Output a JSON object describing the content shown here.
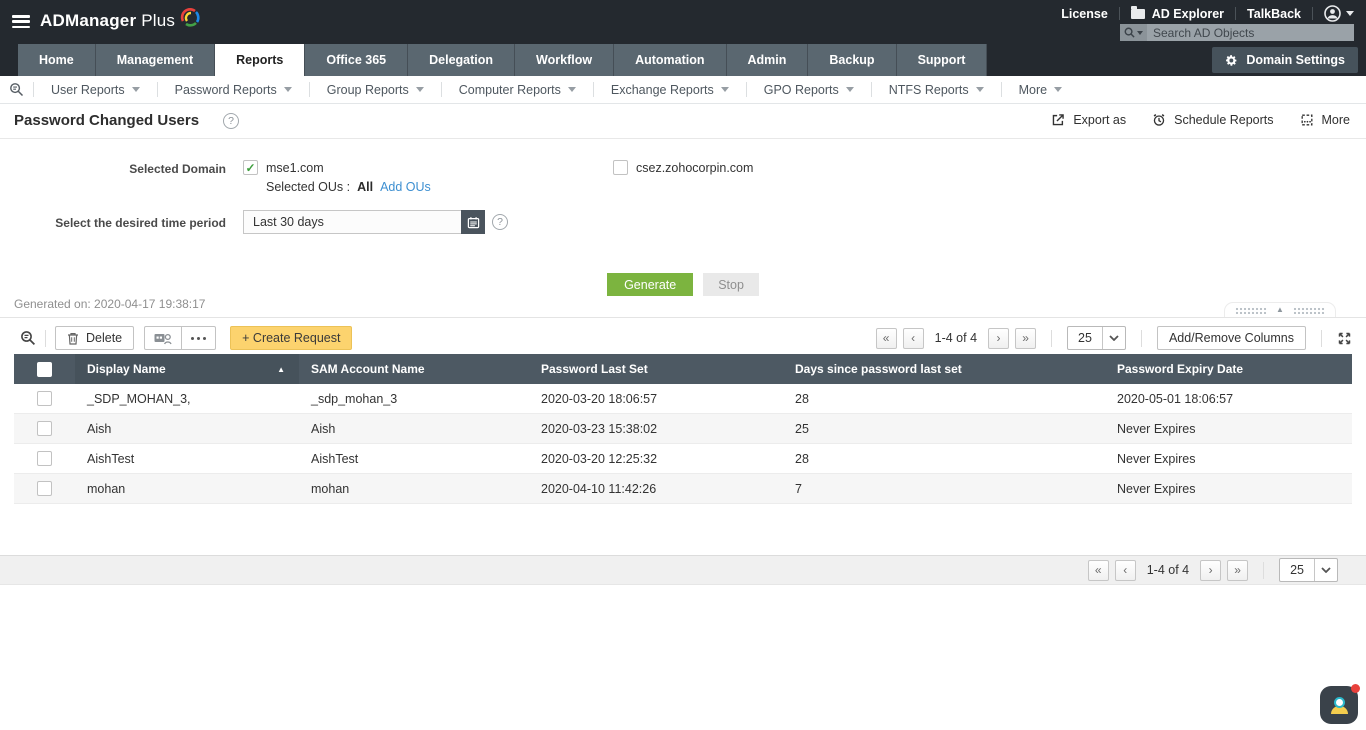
{
  "topbar": {
    "brand_bold": "ADManager",
    "brand_light": "Plus",
    "links": {
      "license": "License",
      "ad_explorer": "AD Explorer",
      "talkback": "TalkBack"
    },
    "search_placeholder": "Search AD Objects"
  },
  "tabs": {
    "items": [
      "Home",
      "Management",
      "Reports",
      "Office 365",
      "Delegation",
      "Workflow",
      "Automation",
      "Admin",
      "Backup",
      "Support"
    ],
    "active": "Reports",
    "domain_settings_label": "Domain Settings"
  },
  "report_nav": {
    "items": [
      "User Reports",
      "Password Reports",
      "Group Reports",
      "Computer Reports",
      "Exchange Reports",
      "GPO Reports",
      "NTFS Reports",
      "More"
    ]
  },
  "page": {
    "title": "Password Changed Users",
    "actions": {
      "export": "Export as",
      "schedule": "Schedule Reports",
      "more": "More"
    }
  },
  "form": {
    "domain_label": "Selected Domain",
    "domains": [
      {
        "name": "mse1.com",
        "checked": true
      },
      {
        "name": "csez.zohocorpin.com",
        "checked": false
      }
    ],
    "selected_ous_label": "Selected OUs :",
    "selected_ous_value": "All",
    "add_ous_label": "Add OUs",
    "time_label": "Select the desired time period",
    "time_value": "Last 30 days"
  },
  "buttons": {
    "generate": "Generate",
    "stop": "Stop"
  },
  "generated_on": "Generated on: 2020-04-17 19:38:17",
  "toolbar": {
    "delete_label": "Delete",
    "create_request_label": "+ Create Request",
    "add_remove_columns_label": "Add/Remove Columns"
  },
  "pagination": {
    "first_glyph": "«",
    "prev_glyph": "‹",
    "next_glyph": "›",
    "last_glyph": "»",
    "range": "1-4 of 4",
    "page_size": "25"
  },
  "icons": {
    "check_glyph": "✓",
    "help_glyph": "?",
    "sort_asc_glyph": "▲",
    "collapse_glyph": "▲"
  },
  "table": {
    "columns": [
      "Display Name",
      "SAM Account Name",
      "Password Last Set",
      "Days since password last set",
      "Password Expiry Date"
    ],
    "sorted_column": "Display Name",
    "rows": [
      [
        "_SDP_MOHAN_3,",
        "_sdp_mohan_3",
        "2020-03-20 18:06:57",
        "28",
        "2020-05-01 18:06:57"
      ],
      [
        "Aish",
        "Aish",
        "2020-03-23 15:38:02",
        "25",
        "Never Expires"
      ],
      [
        "AishTest",
        "AishTest",
        "2020-03-20 12:25:32",
        "28",
        "Never Expires"
      ],
      [
        "mohan",
        "mohan",
        "2020-04-10 11:42:26",
        "7",
        "Never Expires"
      ]
    ]
  },
  "colors": {
    "topbar_bg": "#24292f",
    "tab_bg": "#5a6770",
    "header_bg": "#4d5963",
    "accent_green": "#7cb43f",
    "accent_yellow": "#fcd36e",
    "link_blue": "#3d8fd1",
    "alert_red": "#e8413c"
  }
}
